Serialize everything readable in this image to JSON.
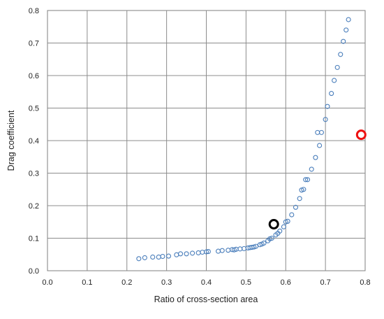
{
  "chart_data": {
    "type": "scatter",
    "title": "",
    "xlabel": "Ratio of cross-section area",
    "ylabel": "Drag coefficient",
    "xlim": [
      0.0,
      0.8
    ],
    "ylim": [
      0.0,
      0.8
    ],
    "x_ticks": [
      "0.0",
      "0.1",
      "0.2",
      "0.3",
      "0.4",
      "0.5",
      "0.6",
      "0.7",
      "0.8"
    ],
    "y_ticks": [
      "0.0",
      "0.1",
      "0.2",
      "0.3",
      "0.4",
      "0.5",
      "0.6",
      "0.7",
      "0.8"
    ],
    "grid": true,
    "legend": "none",
    "series": [
      {
        "color": "#4a7ebb",
        "marker": "small-open-circle",
        "points": [
          [
            0.23,
            0.037
          ],
          [
            0.245,
            0.04
          ],
          [
            0.265,
            0.042
          ],
          [
            0.28,
            0.042
          ],
          [
            0.29,
            0.044
          ],
          [
            0.305,
            0.045
          ],
          [
            0.325,
            0.049
          ],
          [
            0.335,
            0.052
          ],
          [
            0.35,
            0.052
          ],
          [
            0.365,
            0.054
          ],
          [
            0.38,
            0.055
          ],
          [
            0.39,
            0.057
          ],
          [
            0.4,
            0.058
          ],
          [
            0.405,
            0.059
          ],
          [
            0.43,
            0.06
          ],
          [
            0.44,
            0.062
          ],
          [
            0.455,
            0.063
          ],
          [
            0.465,
            0.065
          ],
          [
            0.475,
            0.066
          ],
          [
            0.485,
            0.067
          ],
          [
            0.495,
            0.068
          ],
          [
            0.505,
            0.07
          ],
          [
            0.515,
            0.072
          ],
          [
            0.525,
            0.075
          ],
          [
            0.535,
            0.08
          ],
          [
            0.545,
            0.085
          ],
          [
            0.555,
            0.092
          ],
          [
            0.565,
            0.1
          ],
          [
            0.575,
            0.11
          ],
          [
            0.585,
            0.122
          ],
          [
            0.595,
            0.135
          ],
          [
            0.605,
            0.152
          ],
          [
            0.615,
            0.172
          ],
          [
            0.625,
            0.195
          ],
          [
            0.635,
            0.222
          ],
          [
            0.645,
            0.25
          ],
          [
            0.655,
            0.28
          ],
          [
            0.665,
            0.312
          ],
          [
            0.675,
            0.348
          ],
          [
            0.685,
            0.385
          ],
          [
            0.69,
            0.425
          ],
          [
            0.7,
            0.465
          ],
          [
            0.705,
            0.505
          ],
          [
            0.715,
            0.545
          ],
          [
            0.722,
            0.585
          ],
          [
            0.73,
            0.625
          ],
          [
            0.738,
            0.665
          ],
          [
            0.745,
            0.705
          ],
          [
            0.752,
            0.74
          ],
          [
            0.758,
            0.772
          ],
          [
            0.51,
            0.071
          ],
          [
            0.52,
            0.073
          ],
          [
            0.64,
            0.248
          ],
          [
            0.65,
            0.28
          ],
          [
            0.68,
            0.425
          ],
          [
            0.58,
            0.115
          ],
          [
            0.6,
            0.15
          ],
          [
            0.47,
            0.064
          ],
          [
            0.56,
            0.098
          ],
          [
            0.54,
            0.082
          ]
        ]
      },
      {
        "color": "#000000",
        "marker": "large-open-circle",
        "points": [
          [
            0.57,
            0.143
          ]
        ]
      },
      {
        "color": "#ee1111",
        "marker": "large-open-circle",
        "points": [
          [
            0.79,
            0.418
          ]
        ]
      }
    ]
  }
}
